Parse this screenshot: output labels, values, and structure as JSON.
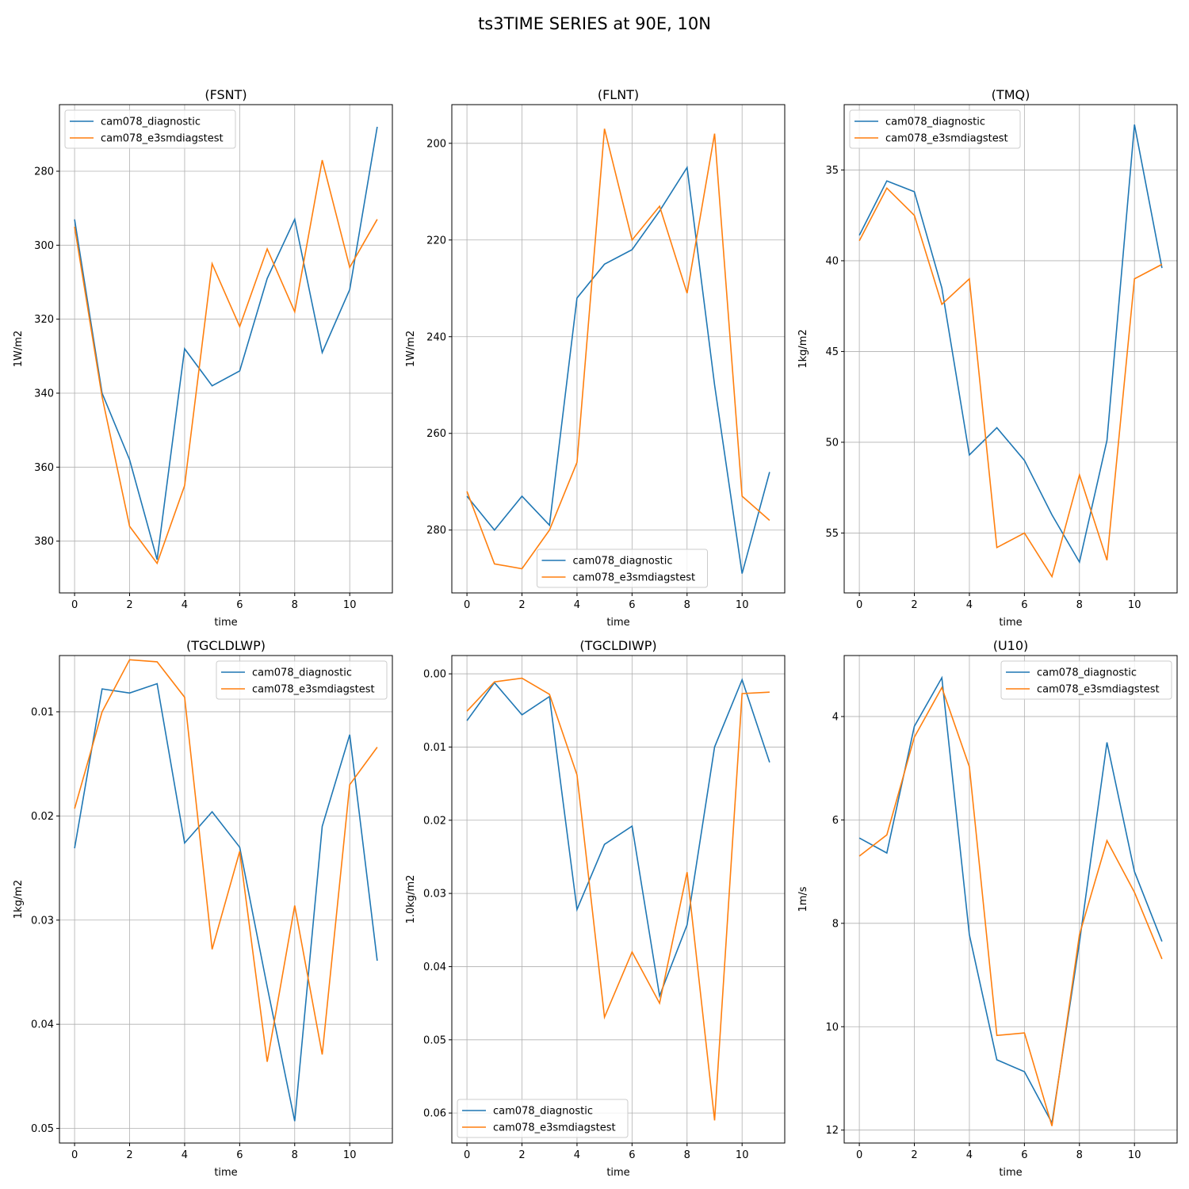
{
  "figure": {
    "title": "ts3TIME SERIES at 90E, 10N"
  },
  "colors": {
    "series0": "#1f77b4",
    "series1": "#ff7f0e"
  },
  "chart_data": [
    {
      "type": "line",
      "title": "(FSNT)",
      "xlabel": "time",
      "ylabel": "1W/m2",
      "xlim": [
        -0.55,
        11.55
      ],
      "ylim": [
        394,
        262
      ],
      "xticks": [
        0,
        2,
        4,
        6,
        8,
        10
      ],
      "yticks": [
        280,
        300,
        320,
        340,
        360,
        380
      ],
      "legend": "upper left",
      "x": [
        0,
        1,
        2,
        3,
        4,
        5,
        6,
        7,
        8,
        9,
        10,
        11
      ],
      "series": [
        {
          "name": "cam078_diagnostic",
          "values": [
            293,
            340,
            358,
            385,
            328,
            338,
            334,
            309,
            293,
            329,
            312,
            268
          ]
        },
        {
          "name": "cam078_e3smdiagstest",
          "values": [
            295,
            341,
            376,
            386,
            365,
            305,
            322,
            301,
            318,
            277,
            306,
            293
          ]
        }
      ]
    },
    {
      "type": "line",
      "title": "(FLNT)",
      "xlabel": "time",
      "ylabel": "1W/m2",
      "xlim": [
        -0.55,
        11.55
      ],
      "ylim": [
        293,
        192
      ],
      "xticks": [
        0,
        2,
        4,
        6,
        8,
        10
      ],
      "yticks": [
        200,
        220,
        240,
        260,
        280
      ],
      "legend": "lower center",
      "x": [
        0,
        1,
        2,
        3,
        4,
        5,
        6,
        7,
        8,
        9,
        10,
        11
      ],
      "series": [
        {
          "name": "cam078_diagnostic",
          "values": [
            273,
            280,
            273,
            279,
            232,
            225,
            222,
            214,
            205,
            250,
            289,
            268
          ]
        },
        {
          "name": "cam078_e3smdiagstest",
          "values": [
            272,
            287,
            288,
            280,
            266,
            197,
            220,
            213,
            231,
            198,
            273,
            278
          ]
        }
      ]
    },
    {
      "type": "line",
      "title": "(TMQ)",
      "xlabel": "time",
      "ylabel": "1kg/m2",
      "xlim": [
        -0.55,
        11.55
      ],
      "ylim": [
        58.3,
        31.4
      ],
      "xticks": [
        0,
        2,
        4,
        6,
        8,
        10
      ],
      "yticks": [
        35,
        40,
        45,
        50,
        55
      ],
      "legend": "upper left",
      "x": [
        0,
        1,
        2,
        3,
        4,
        5,
        6,
        7,
        8,
        9,
        10,
        11
      ],
      "series": [
        {
          "name": "cam078_diagnostic",
          "values": [
            38.6,
            35.6,
            36.2,
            41.5,
            50.7,
            49.2,
            51.0,
            54.0,
            56.6,
            49.9,
            32.5,
            40.4
          ]
        },
        {
          "name": "cam078_e3smdiagstest",
          "values": [
            38.9,
            36.0,
            37.5,
            42.4,
            41.0,
            55.8,
            55.0,
            57.4,
            51.8,
            56.5,
            41.0,
            40.2
          ]
        }
      ]
    },
    {
      "type": "line",
      "title": "(TGCLDLWP)",
      "xlabel": "time",
      "ylabel": "1kg/m2",
      "xlim": [
        -0.55,
        11.55
      ],
      "ylim": [
        0.0514,
        0.0046
      ],
      "xticks": [
        0,
        2,
        4,
        6,
        8,
        10
      ],
      "yticks": [
        0.01,
        0.02,
        0.03,
        0.04,
        0.05
      ],
      "ytick_labels": [
        "0.01",
        "0.02",
        "0.03",
        "0.04",
        "0.05"
      ],
      "legend": "upper right",
      "x": [
        0,
        1,
        2,
        3,
        4,
        5,
        6,
        7,
        8,
        9,
        10,
        11
      ],
      "series": [
        {
          "name": "cam078_diagnostic",
          "values": [
            0.0231,
            0.0078,
            0.0082,
            0.0073,
            0.0226,
            0.0196,
            0.023,
            0.0364,
            0.0493,
            0.021,
            0.0122,
            0.0339
          ]
        },
        {
          "name": "cam078_e3smdiagstest",
          "values": [
            0.0193,
            0.01,
            0.005,
            0.0052,
            0.0086,
            0.0328,
            0.0234,
            0.0436,
            0.0286,
            0.0429,
            0.017,
            0.0134
          ]
        }
      ]
    },
    {
      "type": "line",
      "title": "(TGCLDIWP)",
      "xlabel": "time",
      "ylabel": "1.0kg/m2",
      "xlim": [
        -0.55,
        11.55
      ],
      "ylim": [
        0.0641,
        -0.0025
      ],
      "xticks": [
        0,
        2,
        4,
        6,
        8,
        10
      ],
      "yticks": [
        0.0,
        0.01,
        0.02,
        0.03,
        0.04,
        0.05,
        0.06
      ],
      "ytick_labels": [
        "0.00",
        "0.01",
        "0.02",
        "0.03",
        "0.04",
        "0.05",
        "0.06"
      ],
      "legend": "lower left",
      "x": [
        0,
        1,
        2,
        3,
        4,
        5,
        6,
        7,
        8,
        9,
        10,
        11
      ],
      "series": [
        {
          "name": "cam078_diagnostic",
          "values": [
            0.0064,
            0.0012,
            0.0056,
            0.0031,
            0.0322,
            0.0233,
            0.0208,
            0.044,
            0.0343,
            0.01,
            0.0008,
            0.0121
          ]
        },
        {
          "name": "cam078_e3smdiagstest",
          "values": [
            0.0051,
            0.0011,
            0.0006,
            0.0028,
            0.0138,
            0.0469,
            0.038,
            0.045,
            0.0271,
            0.061,
            0.0027,
            0.0025
          ]
        }
      ]
    },
    {
      "type": "line",
      "title": "(U10)",
      "xlabel": "time",
      "ylabel": "1m/s",
      "xlim": [
        -0.55,
        11.55
      ],
      "ylim": [
        12.25,
        2.82
      ],
      "xticks": [
        0,
        2,
        4,
        6,
        8,
        10
      ],
      "yticks": [
        4,
        6,
        8,
        10,
        12
      ],
      "legend": "upper right",
      "x": [
        0,
        1,
        2,
        3,
        4,
        5,
        6,
        7,
        8,
        9,
        10,
        11
      ],
      "series": [
        {
          "name": "cam078_diagnostic",
          "values": [
            6.35,
            6.64,
            4.19,
            3.25,
            8.22,
            10.64,
            10.87,
            11.86,
            8.37,
            4.5,
            7.0,
            8.35
          ]
        },
        {
          "name": "cam078_e3smdiagstest",
          "values": [
            6.7,
            6.29,
            4.4,
            3.44,
            4.97,
            10.17,
            10.12,
            11.92,
            8.22,
            6.4,
            7.4,
            8.69
          ]
        }
      ]
    }
  ]
}
